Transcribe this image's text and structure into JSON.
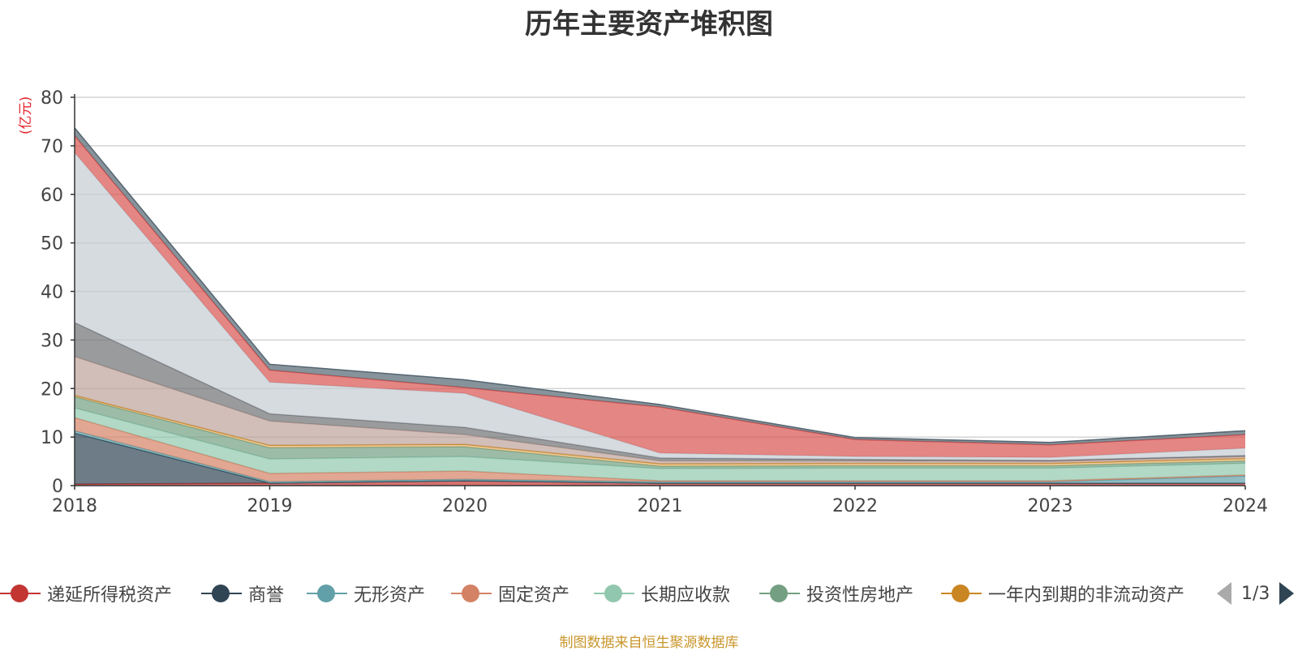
{
  "title": "历年主要资产堆积图",
  "unit_label": "(亿元)",
  "source_text": "制图数据来自恒生聚源数据库",
  "pager": {
    "text": "1/3"
  },
  "legend": [
    {
      "name": "递延所得税资产",
      "color": "#c23531"
    },
    {
      "name": "商誉",
      "color": "#2f4554"
    },
    {
      "name": "无形资产",
      "color": "#61a0a8"
    },
    {
      "name": "固定资产",
      "color": "#d48265"
    },
    {
      "name": "长期应收款",
      "color": "#91c7ae"
    },
    {
      "name": "投资性房地产",
      "color": "#749f83"
    },
    {
      "name": "一年内到期的非流动资产",
      "color": "#ca8622"
    }
  ],
  "chart_data": {
    "type": "area",
    "stacked": true,
    "title": "历年主要资产堆积图",
    "ylabel": "(亿元)",
    "x": [
      "2018",
      "2019",
      "2020",
      "2021",
      "2022",
      "2023",
      "2024"
    ],
    "ylim": [
      0,
      80
    ],
    "yticks": [
      0,
      10,
      20,
      30,
      40,
      50,
      60,
      70,
      80
    ],
    "grid": true,
    "series": [
      {
        "name": "递延所得税资产",
        "color": "#c23531",
        "values": [
          0.3,
          0.5,
          1.0,
          0.5,
          0.5,
          0.5,
          0.5
        ]
      },
      {
        "name": "商誉",
        "color": "#2f4554",
        "values": [
          10.5,
          0.0,
          0.0,
          0.0,
          0.0,
          0.0,
          0.0
        ]
      },
      {
        "name": "无形资产",
        "color": "#61a0a8",
        "values": [
          0.5,
          0.3,
          0.3,
          0.3,
          0.3,
          0.3,
          1.5
        ]
      },
      {
        "name": "固定资产",
        "color": "#d48265",
        "values": [
          2.7,
          1.7,
          1.7,
          0.2,
          0.2,
          0.2,
          0.2
        ]
      },
      {
        "name": "长期应收款",
        "color": "#91c7ae",
        "values": [
          2.0,
          3.0,
          3.0,
          2.5,
          2.6,
          2.6,
          2.4
        ]
      },
      {
        "name": "投资性房地产",
        "color": "#749f83",
        "values": [
          2.3,
          2.3,
          2.0,
          0.5,
          0.5,
          0.5,
          0.5
        ]
      },
      {
        "name": "一年内到期的非流动资产",
        "color": "#ca8622",
        "values": [
          0.3,
          0.5,
          0.5,
          0.5,
          0.5,
          0.5,
          0.5
        ],
        "colorFill": "#e6b56e"
      },
      {
        "name": "",
        "color": "#bda29a",
        "values": [
          8.0,
          5.0,
          2.0,
          0.6,
          0.5,
          0.4,
          0.4
        ]
      },
      {
        "name": "",
        "color": "#6e7074",
        "values": [
          7.0,
          1.5,
          1.5,
          0.6,
          0.3,
          0.2,
          0.2
        ]
      },
      {
        "name": "",
        "color": "#c4ccd3",
        "values": [
          35.0,
          6.5,
          7.0,
          1.0,
          0.6,
          0.6,
          1.5
        ]
      },
      {
        "name": "",
        "color": "#d9534f",
        "values": [
          3.5,
          2.5,
          1.2,
          9.5,
          3.5,
          2.6,
          2.8
        ]
      },
      {
        "name": "",
        "color": "#546570",
        "values": [
          1.6,
          1.2,
          1.6,
          0.5,
          0.4,
          0.5,
          0.8
        ]
      }
    ]
  }
}
